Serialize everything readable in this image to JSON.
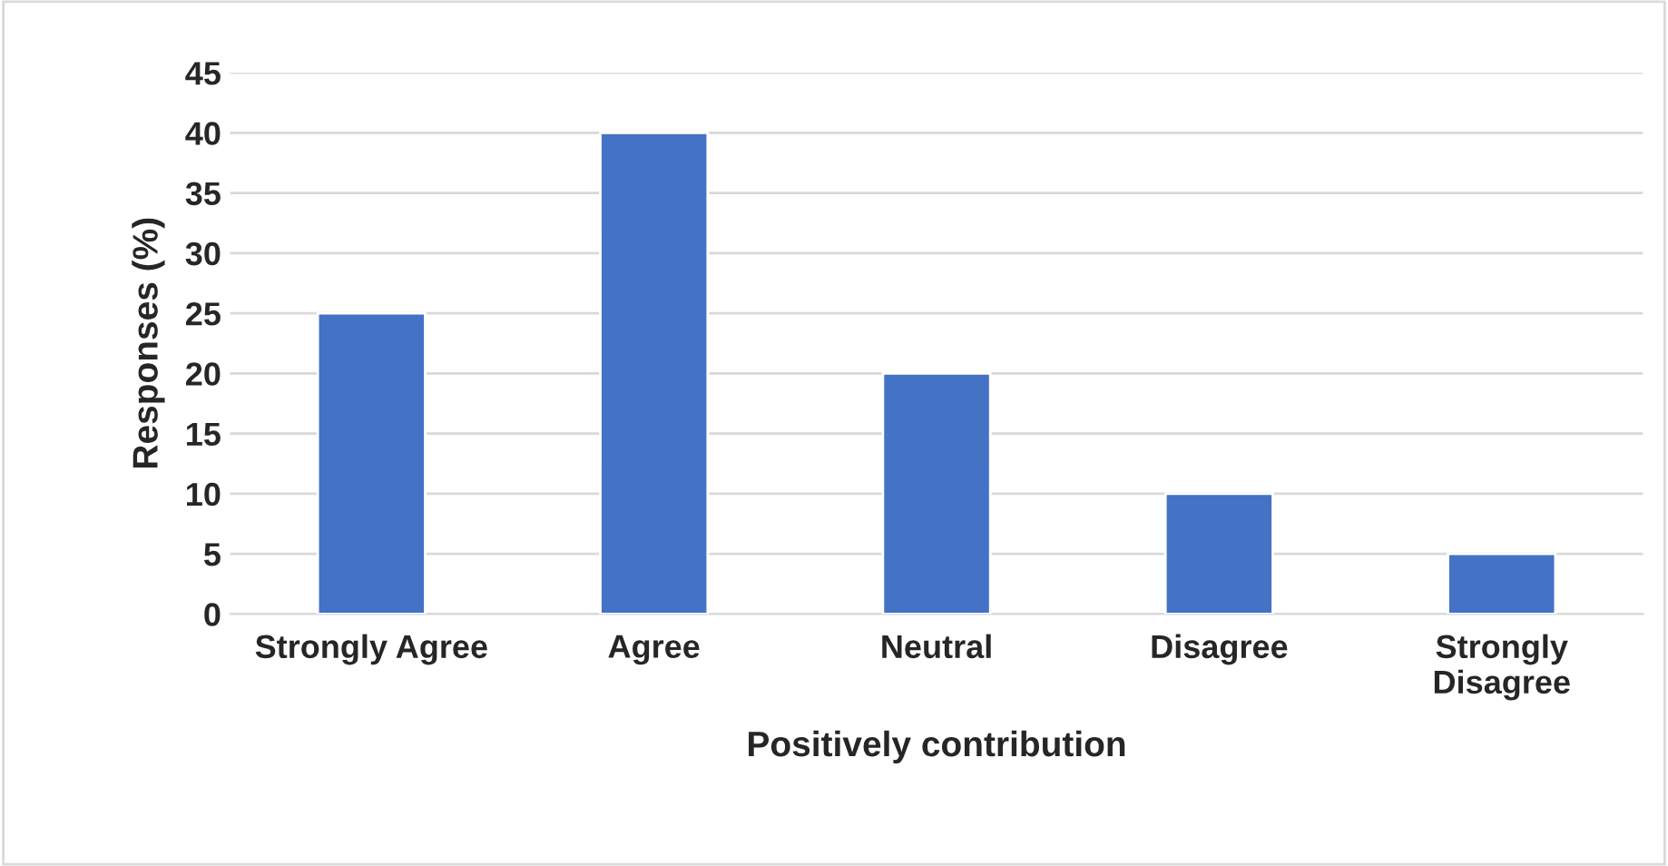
{
  "chart_data": {
    "type": "bar",
    "xlabel": "Positively contribution",
    "ylabel": "Responses (%)",
    "categories": [
      "Strongly Agree",
      "Agree",
      "Neutral",
      "Disagree",
      "Strongly\nDisagree"
    ],
    "values": [
      25,
      40,
      20,
      10,
      5
    ],
    "color": "#4472c4",
    "ylim": [
      0,
      45
    ],
    "yticks": [
      0,
      5,
      10,
      15,
      20,
      25,
      30,
      35,
      40,
      45
    ],
    "grid": "y",
    "legend": false
  }
}
